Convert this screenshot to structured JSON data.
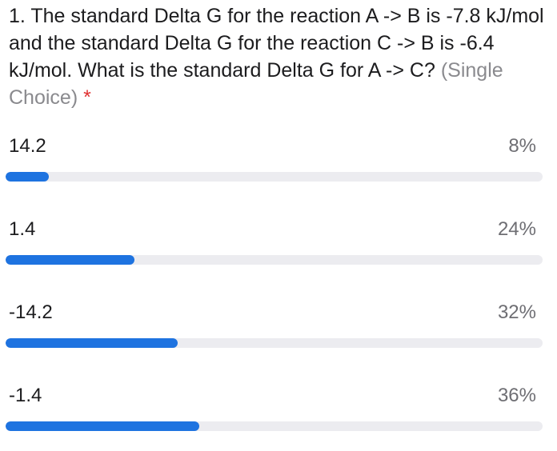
{
  "question": {
    "text": "1. The standard Delta G for the reaction A -> B is -7.8 kJ/mol and the standard Delta G for the reaction C -> B is -6.4 kJ/mol. What is the standard Delta G for A -> C?",
    "type_label": "(Single Choice)",
    "required_mark": "*"
  },
  "colors": {
    "bar_fill": "#1e73e0",
    "bar_track": "#ececf0",
    "required": "#e03131"
  },
  "options": [
    {
      "label": "14.2",
      "percent_label": "8%",
      "percent": 8
    },
    {
      "label": "1.4",
      "percent_label": "24%",
      "percent": 24
    },
    {
      "label": "-14.2",
      "percent_label": "32%",
      "percent": 32
    },
    {
      "label": "-1.4",
      "percent_label": "36%",
      "percent": 36
    }
  ]
}
